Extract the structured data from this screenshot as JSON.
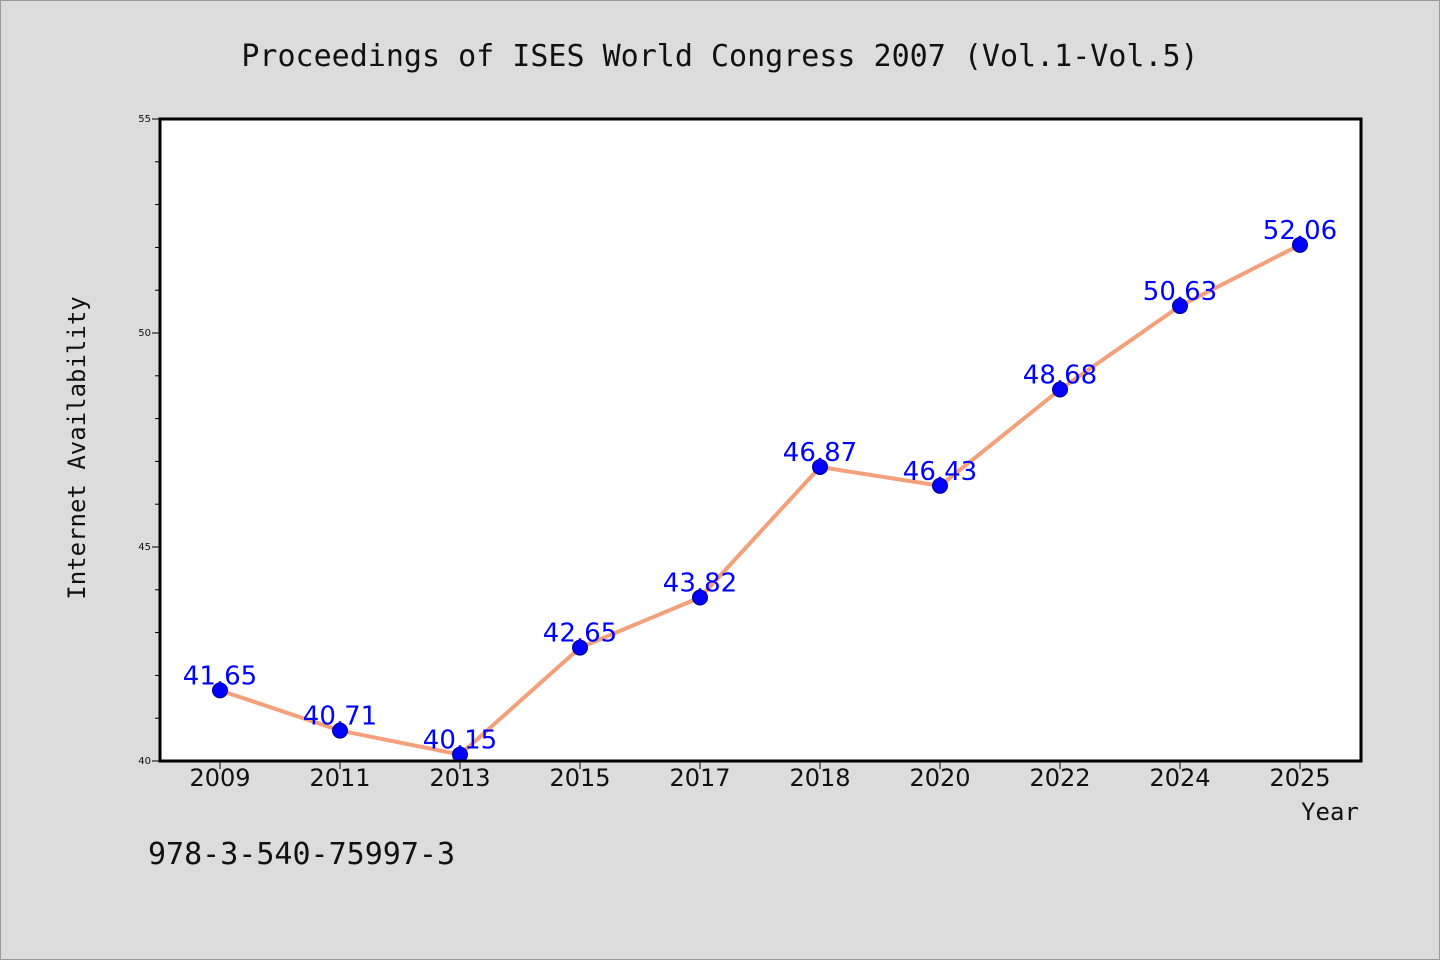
{
  "chart_data": {
    "type": "line",
    "title": "Proceedings of ISES World Congress 2007 (Vol.1-Vol.5)",
    "xlabel": "Year",
    "ylabel": "Internet Availability",
    "categories": [
      "2009",
      "2011",
      "2013",
      "2015",
      "2017",
      "2018",
      "2020",
      "2022",
      "2024",
      "2025"
    ],
    "series": [
      {
        "values": [
          41.65,
          40.71,
          40.15,
          42.65,
          43.82,
          46.87,
          46.43,
          48.68,
          50.63,
          52.06
        ]
      }
    ],
    "data_labels": [
      "41.65",
      "40.71",
      "40.15",
      "42.65",
      "43.82",
      "46.87",
      "46.43",
      "48.68",
      "50.63",
      "52.06"
    ],
    "ylim": [
      40,
      55
    ],
    "yticks": [
      40,
      45,
      50,
      55
    ],
    "ytick_labels": [
      "40",
      "45",
      "50",
      "55"
    ],
    "grid": false,
    "legend": "none",
    "colors": {
      "line": "#f4a07a",
      "marker": "#0000ff",
      "data_label": "#0000ff",
      "background": "#dcdcdc",
      "plot_area": "#ffffff"
    }
  },
  "footer": {
    "isbn": "978-3-540-75997-3"
  }
}
